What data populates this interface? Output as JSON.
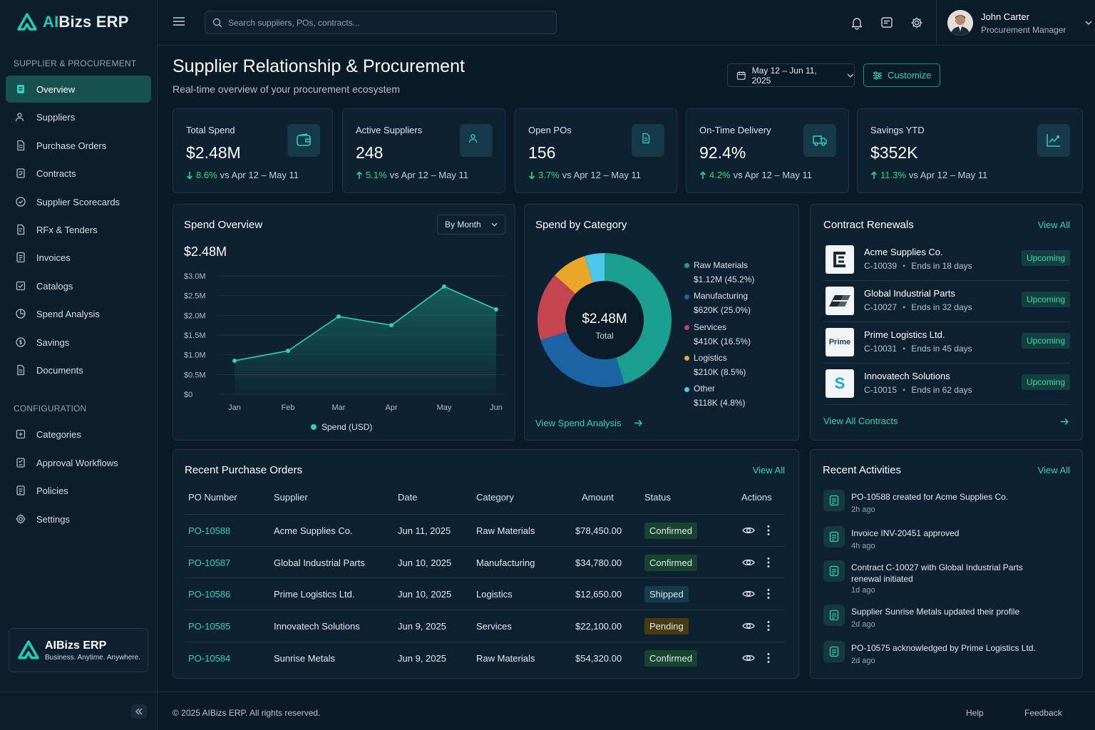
{
  "app": {
    "name_prefix": "AI",
    "name_rest": "Bizs ERP"
  },
  "sidebar": {
    "section1": "SUPPLIER & PROCUREMENT",
    "items1": [
      {
        "label": "Overview",
        "icon": "overview-icon"
      },
      {
        "label": "Suppliers",
        "icon": "users-icon"
      },
      {
        "label": "Purchase Orders",
        "icon": "document-icon"
      },
      {
        "label": "Contracts",
        "icon": "contract-icon"
      },
      {
        "label": "Supplier Scorecards",
        "icon": "scorecard-icon"
      },
      {
        "label": "RFx & Tenders",
        "icon": "rfx-icon"
      },
      {
        "label": "Invoices",
        "icon": "invoice-icon"
      },
      {
        "label": "Catalogs",
        "icon": "catalog-icon"
      },
      {
        "label": "Spend Analysis",
        "icon": "pie-icon"
      },
      {
        "label": "Savings",
        "icon": "savings-icon"
      },
      {
        "label": "Documents",
        "icon": "documents-icon"
      }
    ],
    "section2": "CONFIGURATION",
    "items2": [
      {
        "label": "Categories",
        "icon": "categories-icon"
      },
      {
        "label": "Approval Workflows",
        "icon": "workflow-icon"
      },
      {
        "label": "Policies",
        "icon": "policy-icon"
      },
      {
        "label": "Settings",
        "icon": "gear-icon"
      }
    ],
    "brand_title": "AIBizs ERP",
    "brand_tagline": "Business. Anytime. Anywhere."
  },
  "topbar": {
    "search_placeholder": "Search suppliers, POs, contracts...",
    "user_name": "John Carter",
    "user_role": "Procurement Manager"
  },
  "header": {
    "title": "Supplier Relationship & Procurement",
    "subtitle": "Real-time overview of your procurement ecosystem",
    "date_range": "May 12 – Jun 11, 2025",
    "customize": "Customize"
  },
  "kpis": [
    {
      "label": "Total Spend",
      "value": "$2.48M",
      "delta": "8.6%",
      "direction": "down",
      "compare": "vs Apr 12 – May 11",
      "icon": "wallet-icon"
    },
    {
      "label": "Active Suppliers",
      "value": "248",
      "delta": "5.1%",
      "direction": "up",
      "compare": "vs Apr 12 – May 11",
      "icon": "users-icon"
    },
    {
      "label": "Open POs",
      "value": "156",
      "delta": "3.7%",
      "direction": "down",
      "compare": "vs Apr 12 – May 11",
      "icon": "document-icon"
    },
    {
      "label": "On-Time Delivery",
      "value": "92.4%",
      "delta": "4.2%",
      "direction": "up",
      "compare": "vs Apr 12 – May 11",
      "icon": "truck-icon"
    },
    {
      "label": "Savings YTD",
      "value": "$352K",
      "delta": "11.3%",
      "direction": "up",
      "compare": "vs Apr 12 – May 11",
      "icon": "trend-icon"
    }
  ],
  "spend_overview": {
    "title": "Spend Overview",
    "period": "By Month",
    "total": "$2.48M"
  },
  "chart_data": [
    {
      "type": "area",
      "title": "Spend Overview",
      "categories": [
        "Jan",
        "Feb",
        "Mar",
        "Apr",
        "May",
        "Jun"
      ],
      "series": [
        {
          "name": "Spend (USD)",
          "values": [
            0.85,
            1.1,
            1.97,
            1.75,
            2.73,
            2.15
          ]
        }
      ],
      "y_unit": "M USD",
      "yticks": [
        "$0",
        "$0.5M",
        "$1.0M",
        "$1.5M",
        "$2.0M",
        "$2.5M",
        "$3.0M"
      ],
      "ylim": [
        0,
        3.0
      ],
      "grid": true,
      "legend": "bottom",
      "color": "#2fd0bc"
    },
    {
      "type": "pie",
      "title": "Spend by Category",
      "center_value": "$2.48M",
      "center_label": "Total",
      "slices": [
        {
          "name": "Raw Materials",
          "amount": "$1.12M (45.2%)",
          "value": 45.2,
          "color": "#1a9e8f"
        },
        {
          "name": "Manufacturing",
          "amount": "$620K (25.0%)",
          "value": 25.0,
          "color": "#1c63a3"
        },
        {
          "name": "Services",
          "amount": "$410K (16.5%)",
          "value": 16.5,
          "color": "#c4444f"
        },
        {
          "name": "Logistics",
          "amount": "$210K (8.5%)",
          "value": 8.5,
          "color": "#e9a62a"
        },
        {
          "name": "Other",
          "amount": "$118K (4.8%)",
          "value": 4.8,
          "color": "#4dc6ea"
        }
      ],
      "legend": "right"
    }
  ],
  "spend_category": {
    "title": "Spend by Category",
    "link": "View Spend Analysis"
  },
  "contracts": {
    "title": "Contract Renewals",
    "view_all": "View All",
    "items": [
      {
        "name": "Acme Supplies Co.",
        "id": "C-10039",
        "ends": "Ends in 18 days",
        "status": "Upcoming"
      },
      {
        "name": "Global Industrial Parts",
        "id": "C-10027",
        "ends": "Ends in 32 days",
        "status": "Upcoming"
      },
      {
        "name": "Prime Logistics Ltd.",
        "id": "C-10031",
        "ends": "Ends in 45 days",
        "status": "Upcoming"
      },
      {
        "name": "Innovatech Solutions",
        "id": "C-10015",
        "ends": "Ends in 62 days",
        "status": "Upcoming"
      }
    ],
    "footer_link": "View All Contracts",
    "logo_prime": "Prime",
    "logo_s": "S"
  },
  "orders": {
    "title": "Recent Purchase Orders",
    "view_all": "View All",
    "headers": [
      "PO Number",
      "Supplier",
      "Date",
      "Category",
      "Amount",
      "Status",
      "Actions"
    ],
    "rows": [
      {
        "po": "PO-10588",
        "supplier": "Acme Supplies Co.",
        "date": "Jun 11, 2025",
        "category": "Raw Materials",
        "amount": "$78,450.00",
        "status": "Confirmed"
      },
      {
        "po": "PO-10587",
        "supplier": "Global Industrial Parts",
        "date": "Jun 10, 2025",
        "category": "Manufacturing",
        "amount": "$34,780.00",
        "status": "Confirmed"
      },
      {
        "po": "PO-10586",
        "supplier": "Prime Logistics Ltd.",
        "date": "Jun 10, 2025",
        "category": "Logistics",
        "amount": "$12,650.00",
        "status": "Shipped"
      },
      {
        "po": "PO-10585",
        "supplier": "Innovatech Solutions",
        "date": "Jun 9, 2025",
        "category": "Services",
        "amount": "$22,100.00",
        "status": "Pending"
      },
      {
        "po": "PO-10584",
        "supplier": "Sunrise Metals",
        "date": "Jun 9, 2025",
        "category": "Raw Materials",
        "amount": "$54,320.00",
        "status": "Confirmed"
      }
    ]
  },
  "activities": {
    "title": "Recent Activities",
    "view_all": "View All",
    "items": [
      {
        "text": "PO-10588 created for Acme Supplies Co.",
        "time": "2h ago"
      },
      {
        "text": "Invoice INV-20451 approved",
        "time": "4h ago"
      },
      {
        "text": "Contract C-10027 with Global Industrial Parts renewal initiated",
        "time": "1d ago"
      },
      {
        "text": "Supplier Sunrise Metals updated their profile",
        "time": "2d ago"
      },
      {
        "text": "PO-10575 acknowledged by Prime Logistics Ltd.",
        "time": "2d ago"
      }
    ]
  },
  "footer": {
    "copyright": "© 2025 AIBizs ERP. All rights reserved.",
    "help": "Help",
    "feedback": "Feedback"
  }
}
